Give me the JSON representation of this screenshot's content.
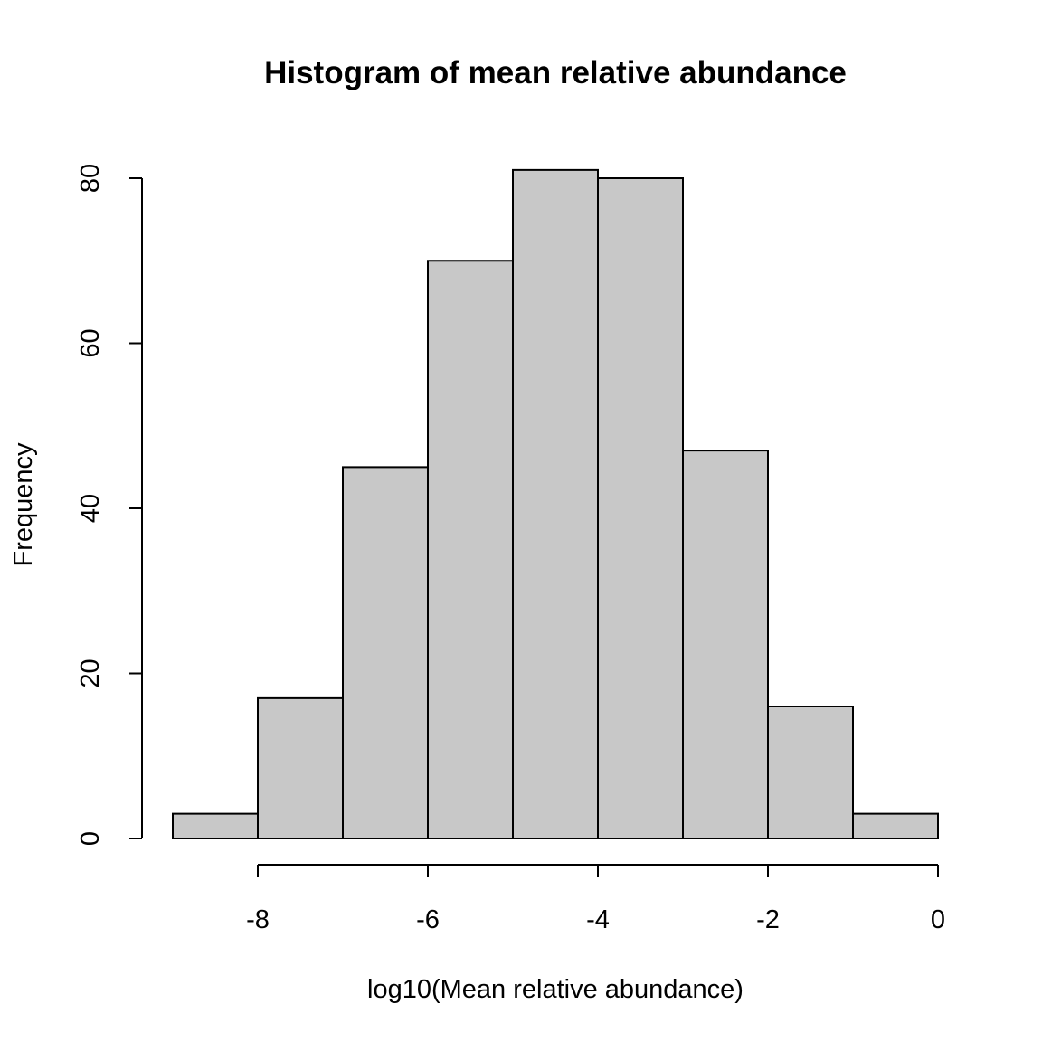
{
  "chart_data": {
    "type": "bar",
    "title": "Histogram of mean relative abundance",
    "xlabel": "log10(Mean relative abundance)",
    "ylabel": "Frequency",
    "bins": [
      {
        "x0": -9,
        "x1": -8,
        "count": 3
      },
      {
        "x0": -8,
        "x1": -7,
        "count": 17
      },
      {
        "x0": -7,
        "x1": -6,
        "count": 45
      },
      {
        "x0": -6,
        "x1": -5,
        "count": 70
      },
      {
        "x0": -5,
        "x1": -4,
        "count": 81
      },
      {
        "x0": -4,
        "x1": -3,
        "count": 80
      },
      {
        "x0": -3,
        "x1": -2,
        "count": 47
      },
      {
        "x0": -2,
        "x1": -1,
        "count": 16
      },
      {
        "x0": -1,
        "x1": 0,
        "count": 3
      }
    ],
    "x_ticks": [
      -8,
      -6,
      -4,
      -2,
      0
    ],
    "y_ticks": [
      0,
      20,
      40,
      60,
      80
    ],
    "x_axis_range": [
      -8,
      0
    ],
    "y_axis_range": [
      0,
      80
    ],
    "bar_color": "#c8c8c8",
    "grid": false,
    "legend": "none"
  }
}
